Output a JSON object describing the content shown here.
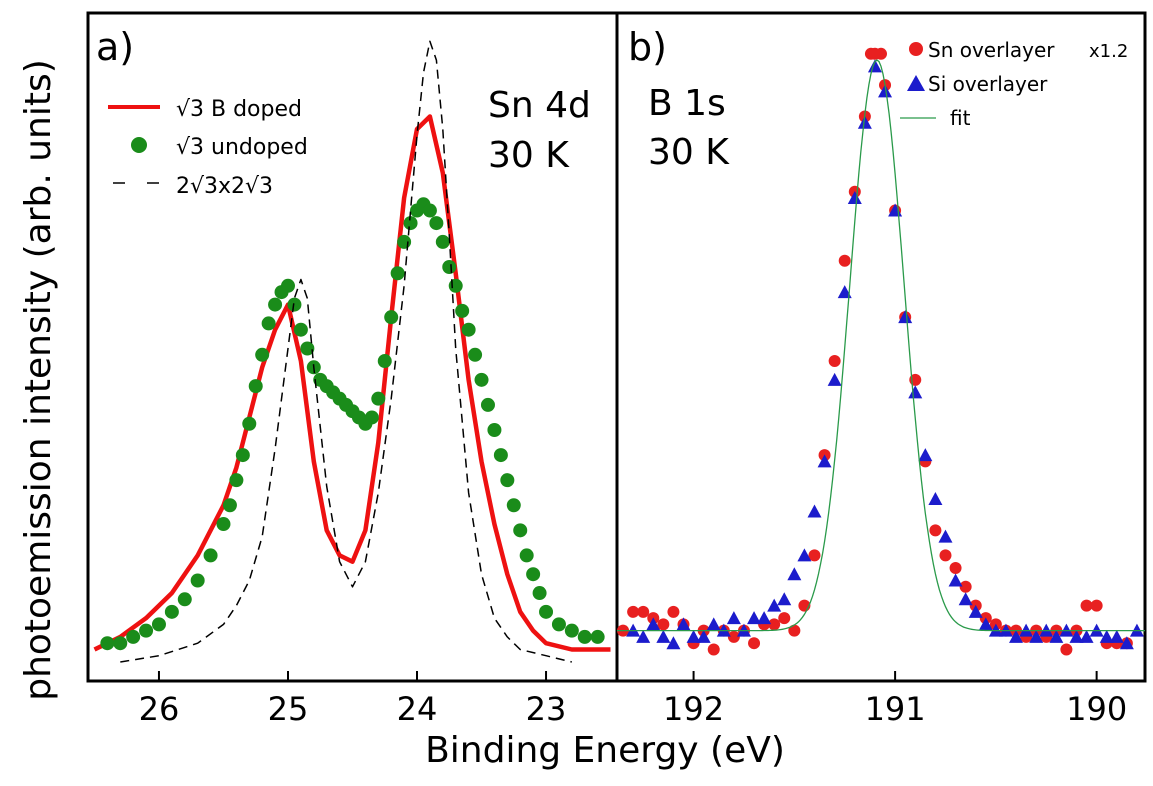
{
  "figure": {
    "ylabel": "photoemission intensity (arb. units)",
    "xlabel": "Binding Energy (eV)"
  },
  "chart_data": [
    {
      "type": "line",
      "panel_label": "a)",
      "annotation": [
        "Sn 4d",
        "30 K"
      ],
      "xlim": [
        26.55,
        22.45
      ],
      "ylim": [
        0,
        1
      ],
      "x_ticks": [
        "26",
        "25",
        "24",
        "23"
      ],
      "legend": [
        {
          "label": "√3 B doped",
          "style": "red-line"
        },
        {
          "label": "√3 undoped",
          "style": "green-circle"
        },
        {
          "label": "2√3x2√3",
          "style": "black-dash"
        }
      ],
      "series": [
        {
          "name": "√3 B doped",
          "color": "#ee1111",
          "x": [
            26.5,
            26.3,
            26.1,
            25.9,
            25.7,
            25.5,
            25.4,
            25.3,
            25.2,
            25.1,
            25.0,
            24.9,
            24.8,
            24.7,
            24.6,
            24.5,
            24.4,
            24.3,
            24.2,
            24.1,
            24.0,
            23.9,
            23.8,
            23.7,
            23.6,
            23.5,
            23.4,
            23.3,
            23.2,
            23.1,
            23.0,
            22.8,
            22.6,
            22.5
          ],
          "y": [
            0.02,
            0.04,
            0.07,
            0.11,
            0.17,
            0.25,
            0.31,
            0.39,
            0.47,
            0.53,
            0.57,
            0.48,
            0.32,
            0.21,
            0.17,
            0.16,
            0.21,
            0.35,
            0.55,
            0.74,
            0.85,
            0.87,
            0.78,
            0.62,
            0.45,
            0.32,
            0.22,
            0.14,
            0.08,
            0.05,
            0.03,
            0.02,
            0.02,
            0.02
          ]
        },
        {
          "name": "√3 undoped",
          "color": "#1a8c1a",
          "x": [
            26.4,
            26.3,
            26.2,
            26.1,
            26.0,
            25.9,
            25.8,
            25.7,
            25.6,
            25.5,
            25.45,
            25.4,
            25.35,
            25.3,
            25.25,
            25.2,
            25.15,
            25.1,
            25.05,
            25.0,
            24.95,
            24.9,
            24.85,
            24.8,
            24.75,
            24.7,
            24.65,
            24.6,
            24.55,
            24.5,
            24.45,
            24.4,
            24.35,
            24.3,
            24.25,
            24.2,
            24.15,
            24.1,
            24.05,
            24.0,
            23.95,
            23.9,
            23.85,
            23.8,
            23.75,
            23.7,
            23.65,
            23.6,
            23.55,
            23.5,
            23.45,
            23.4,
            23.35,
            23.3,
            23.25,
            23.2,
            23.15,
            23.1,
            23.05,
            23.0,
            22.9,
            22.8,
            22.7,
            22.6
          ],
          "y": [
            0.03,
            0.03,
            0.04,
            0.05,
            0.06,
            0.08,
            0.1,
            0.13,
            0.17,
            0.22,
            0.25,
            0.29,
            0.33,
            0.38,
            0.44,
            0.49,
            0.54,
            0.57,
            0.59,
            0.6,
            0.57,
            0.53,
            0.5,
            0.47,
            0.45,
            0.44,
            0.43,
            0.42,
            0.41,
            0.4,
            0.39,
            0.38,
            0.39,
            0.42,
            0.48,
            0.55,
            0.62,
            0.67,
            0.7,
            0.72,
            0.73,
            0.72,
            0.7,
            0.67,
            0.63,
            0.6,
            0.56,
            0.53,
            0.49,
            0.45,
            0.41,
            0.37,
            0.33,
            0.29,
            0.25,
            0.21,
            0.17,
            0.14,
            0.11,
            0.08,
            0.06,
            0.05,
            0.04,
            0.04
          ]
        },
        {
          "name": "2√3x2√3",
          "color": "#000000",
          "dash": true,
          "x": [
            26.3,
            26.0,
            25.7,
            25.5,
            25.4,
            25.3,
            25.2,
            25.1,
            25.0,
            24.95,
            24.9,
            24.85,
            24.8,
            24.7,
            24.6,
            24.5,
            24.4,
            24.3,
            24.2,
            24.1,
            24.0,
            23.95,
            23.9,
            23.85,
            23.8,
            23.75,
            23.7,
            23.6,
            23.5,
            23.4,
            23.3,
            23.2,
            23.0,
            22.8
          ],
          "y": [
            0.0,
            0.01,
            0.03,
            0.06,
            0.09,
            0.13,
            0.2,
            0.34,
            0.5,
            0.58,
            0.61,
            0.58,
            0.47,
            0.28,
            0.16,
            0.12,
            0.16,
            0.27,
            0.42,
            0.6,
            0.84,
            0.94,
            0.99,
            0.96,
            0.85,
            0.68,
            0.5,
            0.27,
            0.14,
            0.07,
            0.04,
            0.02,
            0.01,
            0.0
          ]
        }
      ]
    },
    {
      "type": "scatter",
      "panel_label": "b)",
      "annotation": [
        "B 1s",
        "30 K"
      ],
      "xlim": [
        192.38,
        189.76
      ],
      "ylim": [
        0,
        1
      ],
      "x_ticks": [
        "192",
        "191",
        "190"
      ],
      "legend": [
        {
          "label": "Sn overlayer",
          "extra": "x1.2",
          "style": "red-circle"
        },
        {
          "label": "Si overlayer",
          "style": "blue-triangle"
        },
        {
          "label": "fit",
          "style": "green-line"
        }
      ],
      "series": [
        {
          "name": "Sn overlayer",
          "color": "#e82020",
          "marker": "circle",
          "x": [
            192.35,
            192.3,
            192.25,
            192.2,
            192.15,
            192.1,
            192.05,
            192.0,
            191.95,
            191.9,
            191.85,
            191.8,
            191.75,
            191.7,
            191.65,
            191.6,
            191.55,
            191.5,
            191.45,
            191.4,
            191.35,
            191.3,
            191.25,
            191.2,
            191.15,
            191.12,
            191.1,
            191.07,
            191.05,
            191.0,
            190.95,
            190.9,
            190.85,
            190.8,
            190.75,
            190.7,
            190.65,
            190.6,
            190.55,
            190.5,
            190.45,
            190.4,
            190.35,
            190.3,
            190.25,
            190.2,
            190.15,
            190.1,
            190.05,
            190.0,
            189.95,
            189.9,
            189.85
          ],
          "y": [
            0.05,
            0.08,
            0.08,
            0.07,
            0.06,
            0.08,
            0.06,
            0.03,
            0.05,
            0.02,
            0.05,
            0.04,
            0.05,
            0.03,
            0.06,
            0.06,
            0.07,
            0.05,
            0.09,
            0.17,
            0.33,
            0.48,
            0.64,
            0.75,
            0.87,
            0.97,
            0.97,
            0.97,
            0.92,
            0.72,
            0.55,
            0.45,
            0.32,
            0.21,
            0.17,
            0.15,
            0.12,
            0.09,
            0.07,
            0.06,
            0.05,
            0.05,
            0.04,
            0.05,
            0.04,
            0.05,
            0.02,
            0.05,
            0.09,
            0.09,
            0.03,
            0.03,
            0.03
          ]
        },
        {
          "name": "Si overlayer",
          "color": "#1c1ccc",
          "marker": "triangle",
          "x": [
            192.3,
            192.25,
            192.2,
            192.15,
            192.1,
            192.05,
            192.0,
            191.95,
            191.9,
            191.85,
            191.8,
            191.75,
            191.7,
            191.65,
            191.6,
            191.55,
            191.5,
            191.45,
            191.4,
            191.35,
            191.3,
            191.25,
            191.2,
            191.15,
            191.1,
            191.05,
            191.0,
            190.95,
            190.9,
            190.85,
            190.8,
            190.75,
            190.7,
            190.65,
            190.6,
            190.55,
            190.5,
            190.45,
            190.4,
            190.35,
            190.3,
            190.25,
            190.2,
            190.15,
            190.1,
            190.05,
            190.0,
            189.95,
            189.9,
            189.85,
            189.8
          ],
          "y": [
            0.05,
            0.04,
            0.06,
            0.04,
            0.03,
            0.06,
            0.04,
            0.04,
            0.06,
            0.05,
            0.07,
            0.05,
            0.07,
            0.07,
            0.09,
            0.1,
            0.14,
            0.17,
            0.24,
            0.32,
            0.45,
            0.59,
            0.74,
            0.86,
            0.95,
            0.91,
            0.72,
            0.55,
            0.43,
            0.33,
            0.26,
            0.2,
            0.13,
            0.1,
            0.08,
            0.06,
            0.05,
            0.05,
            0.04,
            0.05,
            0.04,
            0.05,
            0.04,
            0.05,
            0.04,
            0.04,
            0.05,
            0.04,
            0.04,
            0.03,
            0.05
          ]
        },
        {
          "name": "fit",
          "color": "#2a9a4a",
          "fit": {
            "center": 191.09,
            "sigma": 0.135,
            "amplitude": 0.91,
            "baseline": 0.05
          }
        }
      ]
    }
  ]
}
